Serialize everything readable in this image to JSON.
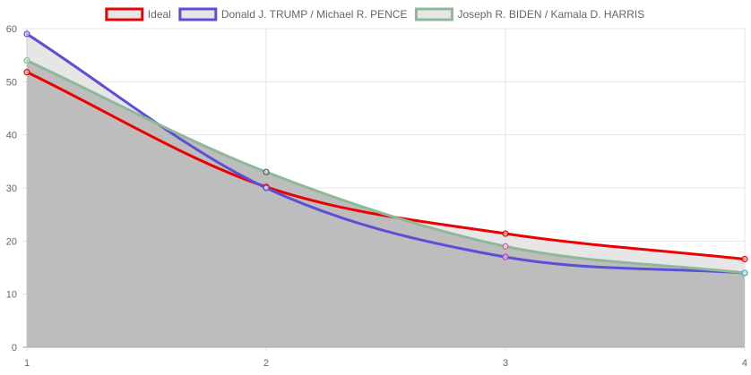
{
  "chart_data": {
    "type": "line",
    "x": [
      1,
      2,
      3,
      4
    ],
    "xlim": [
      1,
      4
    ],
    "ylim": [
      0,
      60
    ],
    "yticks": [
      0,
      10,
      20,
      30,
      40,
      50,
      60
    ],
    "xticks": [
      1,
      2,
      3,
      4
    ],
    "grid": true,
    "legend_position": "top",
    "title": "",
    "xlabel": "",
    "ylabel": "",
    "series": [
      {
        "name": "Ideal",
        "values": [
          51.8,
          30.2,
          21.4,
          16.6
        ],
        "color": "#ee0000",
        "fill": "#e6e6e6"
      },
      {
        "name": "Donald J. TRUMP / Michael R. PENCE",
        "values": [
          59.0,
          30.0,
          17.0,
          14.0
        ],
        "color": "#5b4fd6",
        "fill": "#e6e6e6"
      },
      {
        "name": "Joseph R. BIDEN / Kamala D. HARRIS",
        "values": [
          54.0,
          33.0,
          19.0,
          14.0
        ],
        "color": "#8fb89a",
        "fill": "#bdbdbd"
      }
    ],
    "point_colors": [
      [
        "#ee0000",
        "#ee0000",
        "#ee0000",
        "#ee0000"
      ],
      [
        "#5b4fd6",
        "#5b4fd6",
        "#c03cb8",
        "#5b4fd6"
      ],
      [
        "#8fb89a",
        "#555555",
        "#d4609a",
        "#3dbfbf"
      ]
    ]
  }
}
